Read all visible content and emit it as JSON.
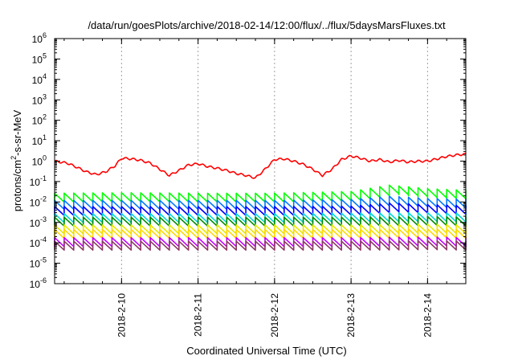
{
  "chart_data": {
    "type": "line",
    "title": "/data/run/goesPlots/archive/2018-02-14/12:00/flux/../flux/5daysMarsFluxes.txt",
    "xlabel": "Coordinated Universal Time (UTC)",
    "ylabel_parts": {
      "pre": "protons/cm",
      "sup": "2",
      "post": "-s-sr-MeV"
    },
    "y_scale": "log",
    "ylim": [
      1e-06,
      1000000.0
    ],
    "y_ticks": [
      {
        "base": "10",
        "exp": "-6"
      },
      {
        "base": "10",
        "exp": "-5"
      },
      {
        "base": "10",
        "exp": "-4"
      },
      {
        "base": "10",
        "exp": "-3"
      },
      {
        "base": "10",
        "exp": "-2"
      },
      {
        "base": "10",
        "exp": "-1"
      },
      {
        "base": "10",
        "exp": "0"
      },
      {
        "base": "10",
        "exp": "1"
      },
      {
        "base": "10",
        "exp": "2"
      },
      {
        "base": "10",
        "exp": "3"
      },
      {
        "base": "10",
        "exp": "4"
      },
      {
        "base": "10",
        "exp": "5"
      },
      {
        "base": "10",
        "exp": "6"
      }
    ],
    "xlim": [
      "2018-02-09T03:00",
      "2018-02-14T12:00"
    ],
    "x_ticks": [
      "2018-2-10",
      "2018-2-11",
      "2018-2-12",
      "2018-2-13",
      "2018-2-14"
    ],
    "grid": true,
    "series": [
      {
        "color": "#ff0000",
        "sawtooth": false,
        "values": [
          [
            "2018-02-09T03:00",
            1.0
          ],
          [
            "2018-02-09T07:00",
            0.8
          ],
          [
            "2018-02-09T10:00",
            0.5
          ],
          [
            "2018-02-09T13:00",
            0.3
          ],
          [
            "2018-02-09T16:00",
            0.22
          ],
          [
            "2018-02-09T19:00",
            0.3
          ],
          [
            "2018-02-09T22:00",
            0.6
          ],
          [
            "2018-02-10T00:00",
            1.4
          ],
          [
            "2018-02-10T03:00",
            1.3
          ],
          [
            "2018-02-10T06:00",
            1.1
          ],
          [
            "2018-02-10T09:00",
            0.8
          ],
          [
            "2018-02-10T12:00",
            0.4
          ],
          [
            "2018-02-10T15:00",
            0.2
          ],
          [
            "2018-02-10T18:00",
            0.35
          ],
          [
            "2018-02-10T21:00",
            0.65
          ],
          [
            "2018-02-11T00:00",
            0.75
          ],
          [
            "2018-02-11T03:00",
            0.55
          ],
          [
            "2018-02-11T06:00",
            0.45
          ],
          [
            "2018-02-11T09:00",
            0.35
          ],
          [
            "2018-02-11T12:00",
            0.25
          ],
          [
            "2018-02-11T15:00",
            0.2
          ],
          [
            "2018-02-11T18:00",
            0.15
          ],
          [
            "2018-02-11T21:00",
            0.4
          ],
          [
            "2018-02-12T00:00",
            1.2
          ],
          [
            "2018-02-12T03:00",
            1.3
          ],
          [
            "2018-02-12T06:00",
            1.0
          ],
          [
            "2018-02-12T09:00",
            0.7
          ],
          [
            "2018-02-12T12:00",
            0.4
          ],
          [
            "2018-02-12T15:00",
            0.2
          ],
          [
            "2018-02-12T18:00",
            0.4
          ],
          [
            "2018-02-12T21:00",
            1.2
          ],
          [
            "2018-02-13T00:00",
            1.8
          ],
          [
            "2018-02-13T03:00",
            1.4
          ],
          [
            "2018-02-13T06:00",
            1.0
          ],
          [
            "2018-02-13T09:00",
            1.2
          ],
          [
            "2018-02-13T12:00",
            0.9
          ],
          [
            "2018-02-13T15:00",
            1.1
          ],
          [
            "2018-02-13T18:00",
            0.9
          ],
          [
            "2018-02-13T21:00",
            1.0
          ],
          [
            "2018-02-14T00:00",
            1.0
          ],
          [
            "2018-02-14T03:00",
            1.3
          ],
          [
            "2018-02-14T06:00",
            1.7
          ],
          [
            "2018-02-14T09:00",
            2.0
          ],
          [
            "2018-02-14T12:00",
            2.2
          ]
        ]
      },
      {
        "color": "#00ff00",
        "sawtooth": true,
        "values": [
          [
            "2018-02-09T03:00",
            0.018
          ],
          [
            "2018-02-10T00:00",
            0.019
          ],
          [
            "2018-02-11T00:00",
            0.018
          ],
          [
            "2018-02-12T00:00",
            0.018
          ],
          [
            "2018-02-13T00:00",
            0.022
          ],
          [
            "2018-02-13T12:00",
            0.045
          ],
          [
            "2018-02-14T00:00",
            0.03
          ],
          [
            "2018-02-14T12:00",
            0.025
          ]
        ]
      },
      {
        "color": "#0078ff",
        "sawtooth": true,
        "values": [
          [
            "2018-02-09T03:00",
            0.008
          ],
          [
            "2018-02-10T00:00",
            0.008
          ],
          [
            "2018-02-11T00:00",
            0.008
          ],
          [
            "2018-02-12T00:00",
            0.008
          ],
          [
            "2018-02-13T00:00",
            0.009
          ],
          [
            "2018-02-13T12:00",
            0.013
          ],
          [
            "2018-02-14T00:00",
            0.01
          ],
          [
            "2018-02-14T12:00",
            0.009
          ]
        ]
      },
      {
        "color": "#0000ff",
        "sawtooth": true,
        "values": [
          [
            "2018-02-09T03:00",
            0.004
          ],
          [
            "2018-02-10T00:00",
            0.004
          ],
          [
            "2018-02-11T00:00",
            0.004
          ],
          [
            "2018-02-12T00:00",
            0.004
          ],
          [
            "2018-02-13T00:00",
            0.0042
          ],
          [
            "2018-02-13T12:00",
            0.006
          ],
          [
            "2018-02-14T00:00",
            0.005
          ],
          [
            "2018-02-14T12:00",
            0.0045
          ]
        ]
      },
      {
        "color": "#00d7d7",
        "sawtooth": true,
        "values": [
          [
            "2018-02-09T03:00",
            0.0018
          ],
          [
            "2018-02-10T00:00",
            0.0018
          ],
          [
            "2018-02-11T00:00",
            0.0018
          ],
          [
            "2018-02-12T00:00",
            0.0018
          ],
          [
            "2018-02-13T00:00",
            0.0019
          ],
          [
            "2018-02-14T00:00",
            0.002
          ],
          [
            "2018-02-14T12:00",
            0.0019
          ]
        ]
      },
      {
        "color": "#008b00",
        "sawtooth": true,
        "values": [
          [
            "2018-02-09T03:00",
            0.0012
          ],
          [
            "2018-02-10T00:00",
            0.0012
          ],
          [
            "2018-02-11T00:00",
            0.0012
          ],
          [
            "2018-02-12T00:00",
            0.0012
          ],
          [
            "2018-02-13T00:00",
            0.0012
          ],
          [
            "2018-02-14T00:00",
            0.0013
          ],
          [
            "2018-02-14T12:00",
            0.0012
          ]
        ]
      },
      {
        "color": "#e8e800",
        "sawtooth": true,
        "values": [
          [
            "2018-02-09T03:00",
            0.0005
          ],
          [
            "2018-02-10T00:00",
            0.0005
          ],
          [
            "2018-02-11T00:00",
            0.0005
          ],
          [
            "2018-02-12T00:00",
            0.0005
          ],
          [
            "2018-02-13T00:00",
            0.0005
          ],
          [
            "2018-02-14T00:00",
            0.00055
          ],
          [
            "2018-02-14T12:00",
            0.0005
          ]
        ]
      },
      {
        "color": "#ffd700",
        "sawtooth": true,
        "values": [
          [
            "2018-02-09T03:00",
            0.0003
          ],
          [
            "2018-02-10T00:00",
            0.0003
          ],
          [
            "2018-02-11T00:00",
            0.0003
          ],
          [
            "2018-02-12T00:00",
            0.0003
          ],
          [
            "2018-02-13T00:00",
            0.0003
          ],
          [
            "2018-02-14T00:00",
            0.00032
          ],
          [
            "2018-02-14T12:00",
            0.0003
          ]
        ]
      },
      {
        "color": "#c000ff",
        "sawtooth": true,
        "values": [
          [
            "2018-02-09T03:00",
            0.00012
          ],
          [
            "2018-02-10T00:00",
            0.00012
          ],
          [
            "2018-02-11T00:00",
            0.00012
          ],
          [
            "2018-02-12T00:00",
            0.00012
          ],
          [
            "2018-02-13T00:00",
            0.00012
          ],
          [
            "2018-02-14T00:00",
            0.00013
          ],
          [
            "2018-02-14T12:00",
            0.00012
          ]
        ]
      },
      {
        "color": "#8b3a62",
        "sawtooth": true,
        "values": [
          [
            "2018-02-09T03:00",
            8e-05
          ],
          [
            "2018-02-10T00:00",
            8e-05
          ],
          [
            "2018-02-11T00:00",
            8e-05
          ],
          [
            "2018-02-12T00:00",
            8e-05
          ],
          [
            "2018-02-13T00:00",
            8e-05
          ],
          [
            "2018-02-14T00:00",
            8.5e-05
          ],
          [
            "2018-02-14T12:00",
            8e-05
          ]
        ]
      }
    ]
  }
}
